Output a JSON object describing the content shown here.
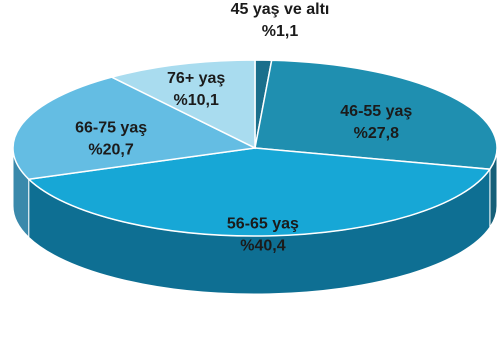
{
  "chart_data": {
    "type": "pie",
    "style": "3d",
    "categories": [
      "45 yaş ve altı",
      "46-55 yaş",
      "56-65 yaş",
      "66-75 yaş",
      "76+ yaş"
    ],
    "values": [
      1.1,
      27.8,
      40.4,
      20.7,
      10.1
    ],
    "value_labels": [
      "%1,1",
      "%27,8",
      "%40,4",
      "%20,7",
      "%10,1"
    ],
    "colors": [
      "#1a6f8c",
      "#1f8fb0",
      "#17a7d6",
      "#64bde3",
      "#a9dcef"
    ],
    "side_colors": [
      "#0f4a5e",
      "#155f78",
      "#0e6f93",
      "#3a89ab",
      "#6fa9bf"
    ],
    "legend": "none"
  }
}
